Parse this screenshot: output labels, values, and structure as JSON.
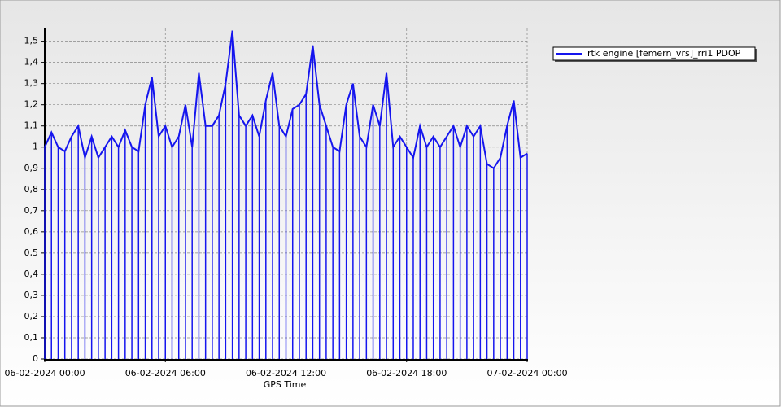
{
  "chart_data": {
    "type": "line",
    "x_label": "GPS Time",
    "x": [
      "06-02-2024 00:00",
      "06-02-2024 00:20",
      "06-02-2024 00:40",
      "06-02-2024 01:00",
      "06-02-2024 01:20",
      "06-02-2024 01:40",
      "06-02-2024 02:00",
      "06-02-2024 02:20",
      "06-02-2024 02:40",
      "06-02-2024 03:00",
      "06-02-2024 03:20",
      "06-02-2024 03:40",
      "06-02-2024 04:00",
      "06-02-2024 04:20",
      "06-02-2024 04:40",
      "06-02-2024 05:00",
      "06-02-2024 05:20",
      "06-02-2024 05:40",
      "06-02-2024 06:00",
      "06-02-2024 06:20",
      "06-02-2024 06:40",
      "06-02-2024 07:00",
      "06-02-2024 07:20",
      "06-02-2024 07:40",
      "06-02-2024 08:00",
      "06-02-2024 08:20",
      "06-02-2024 08:40",
      "06-02-2024 09:00",
      "06-02-2024 09:20",
      "06-02-2024 09:40",
      "06-02-2024 10:00",
      "06-02-2024 10:20",
      "06-02-2024 10:40",
      "06-02-2024 11:00",
      "06-02-2024 11:20",
      "06-02-2024 11:40",
      "06-02-2024 12:00",
      "06-02-2024 12:20",
      "06-02-2024 12:40",
      "06-02-2024 13:00",
      "06-02-2024 13:20",
      "06-02-2024 13:40",
      "06-02-2024 14:00",
      "06-02-2024 14:20",
      "06-02-2024 14:40",
      "06-02-2024 15:00",
      "06-02-2024 15:20",
      "06-02-2024 15:40",
      "06-02-2024 16:00",
      "06-02-2024 16:20",
      "06-02-2024 16:40",
      "06-02-2024 17:00",
      "06-02-2024 17:20",
      "06-02-2024 17:40",
      "06-02-2024 18:00",
      "06-02-2024 18:20",
      "06-02-2024 18:40",
      "06-02-2024 19:00",
      "06-02-2024 19:20",
      "06-02-2024 19:40",
      "06-02-2024 20:00",
      "06-02-2024 20:20",
      "06-02-2024 20:40",
      "06-02-2024 21:00",
      "06-02-2024 21:20",
      "06-02-2024 21:40",
      "06-02-2024 22:00",
      "06-02-2024 22:20",
      "06-02-2024 22:40",
      "06-02-2024 23:00",
      "06-02-2024 23:20",
      "06-02-2024 23:40",
      "07-02-2024 00:00"
    ],
    "series": [
      {
        "name": "rtk engine [femern_vrs]_rri1 PDOP",
        "color": "#1515ee",
        "values": [
          1.0,
          1.07,
          1.0,
          0.98,
          1.05,
          1.1,
          0.95,
          1.05,
          0.95,
          1.0,
          1.05,
          1.0,
          1.08,
          1.0,
          0.98,
          1.2,
          1.33,
          1.05,
          1.1,
          1.0,
          1.05,
          1.2,
          1.0,
          1.35,
          1.1,
          1.1,
          1.15,
          1.3,
          1.55,
          1.15,
          1.1,
          1.15,
          1.05,
          1.22,
          1.35,
          1.1,
          1.05,
          1.18,
          1.2,
          1.25,
          1.48,
          1.2,
          1.1,
          1.0,
          0.98,
          1.2,
          1.3,
          1.05,
          1.0,
          1.2,
          1.1,
          1.35,
          1.0,
          1.05,
          1.0,
          0.95,
          1.1,
          1.0,
          1.05,
          1.0,
          1.05,
          1.1,
          1.0,
          1.1,
          1.05,
          1.1,
          0.92,
          0.9,
          0.95,
          1.1,
          1.22,
          0.95,
          0.97
        ]
      }
    ],
    "drop_lines": true,
    "xlim": [
      "06-02-2024 00:00",
      "07-02-2024 00:00"
    ],
    "xticks": [
      "06-02-2024 00:00",
      "06-02-2024 06:00",
      "06-02-2024 12:00",
      "06-02-2024 18:00",
      "07-02-2024 00:00"
    ],
    "ylim": [
      0,
      1.56
    ],
    "yticks": [
      0,
      {
        "value": 0.1,
        "label": "0,1"
      },
      {
        "value": 0.2,
        "label": "0,2"
      },
      {
        "value": 0.3,
        "label": "0,3"
      },
      {
        "value": 0.4,
        "label": "0,4"
      },
      {
        "value": 0.5,
        "label": "0,5"
      },
      {
        "value": 0.6,
        "label": "0,6"
      },
      {
        "value": 0.7,
        "label": "0,7"
      },
      {
        "value": 0.8,
        "label": "0,8"
      },
      {
        "value": 0.9,
        "label": "0,9"
      },
      1,
      {
        "value": 1.1,
        "label": "1,1"
      },
      {
        "value": 1.2,
        "label": "1,2"
      },
      {
        "value": 1.3,
        "label": "1,3"
      },
      {
        "value": 1.4,
        "label": "1,4"
      },
      {
        "value": 1.5,
        "label": "1,5"
      }
    ],
    "grid": true,
    "legend": "top-right"
  }
}
